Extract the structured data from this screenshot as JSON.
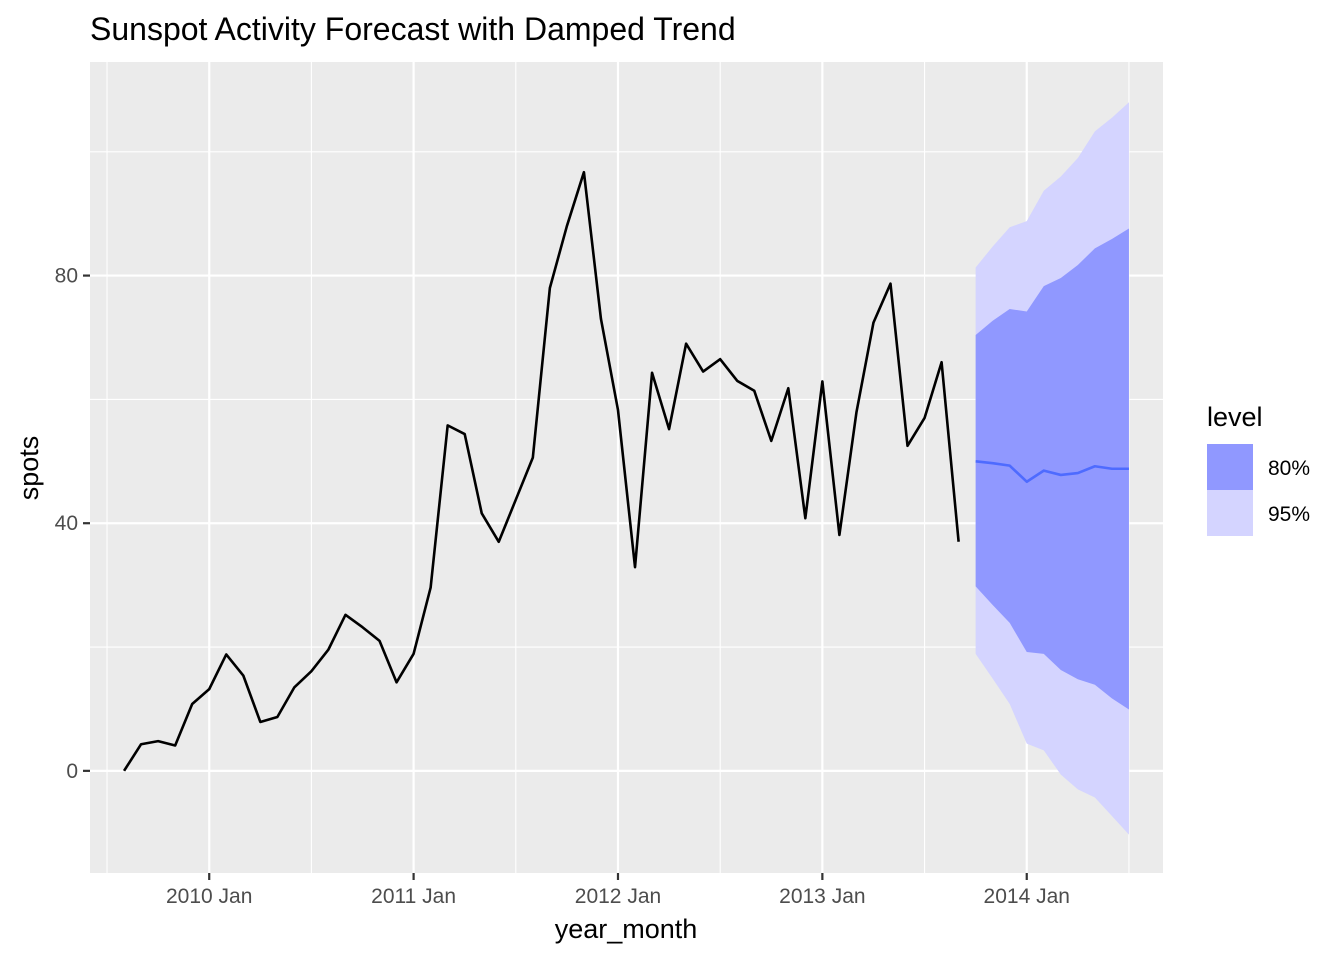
{
  "chart_data": {
    "type": "line",
    "title": "Sunspot Activity Forecast with Damped Trend",
    "xlabel": "year_month",
    "ylabel": "spots",
    "x_ticks": [
      "2010 Jan",
      "2011 Jan",
      "2012 Jan",
      "2013 Jan",
      "2014 Jan"
    ],
    "y_ticks": [
      "0",
      "40",
      "80"
    ],
    "ylim": [
      -16.5,
      114.5
    ],
    "xlim": [
      "2009-06",
      "2014-09"
    ],
    "grid": true,
    "legend_position": "right",
    "legend_title": "level",
    "colors": {
      "panel": "#EBEBEB",
      "grid": "#FFFFFF",
      "history": "#000000",
      "forecast_mean": "#4E6BFF",
      "band_80": "#9098FF",
      "band_95": "#D4D4FF"
    },
    "history": {
      "x": [
        "2009-08",
        "2009-09",
        "2009-10",
        "2009-11",
        "2009-12",
        "2010-01",
        "2010-02",
        "2010-03",
        "2010-04",
        "2010-05",
        "2010-06",
        "2010-07",
        "2010-08",
        "2010-09",
        "2010-10",
        "2010-11",
        "2010-12",
        "2011-01",
        "2011-02",
        "2011-03",
        "2011-04",
        "2011-05",
        "2011-06",
        "2011-07",
        "2011-08",
        "2011-09",
        "2011-10",
        "2011-11",
        "2011-12",
        "2012-01",
        "2012-02",
        "2012-03",
        "2012-04",
        "2012-05",
        "2012-06",
        "2012-07",
        "2012-08",
        "2012-09",
        "2012-10",
        "2012-11",
        "2012-12",
        "2013-01",
        "2013-02",
        "2013-03",
        "2013-04",
        "2013-05",
        "2013-06",
        "2013-07",
        "2013-08",
        "2013-09"
      ],
      "y": [
        0.0,
        4.3,
        4.8,
        4.1,
        10.8,
        13.2,
        18.8,
        15.4,
        7.9,
        8.7,
        13.5,
        16.1,
        19.6,
        25.2,
        23.2,
        21.0,
        14.3,
        18.9,
        29.6,
        55.8,
        54.4,
        41.6,
        37.0,
        43.8,
        50.6,
        78.0,
        88.0,
        96.7,
        73.0,
        58.3,
        32.9,
        64.3,
        55.2,
        69.0,
        64.5,
        66.5,
        63.0,
        61.4,
        53.3,
        61.8,
        40.8,
        62.9,
        38.1,
        57.9,
        72.4,
        78.7,
        52.5,
        57.0,
        66.0,
        37.0
      ]
    },
    "forecast": {
      "x": [
        "2013-10",
        "2013-11",
        "2013-12",
        "2014-01",
        "2014-02",
        "2014-03",
        "2014-04",
        "2014-05",
        "2014-06",
        "2014-07"
      ],
      "mean": [
        50.0,
        49.7,
        49.3,
        46.7,
        48.5,
        47.8,
        48.1,
        49.2,
        48.8,
        48.8
      ],
      "lower_80": [
        29.8,
        26.8,
        23.9,
        19.2,
        18.9,
        16.3,
        14.8,
        13.9,
        11.7,
        9.9
      ],
      "upper_80": [
        70.4,
        72.7,
        74.6,
        74.2,
        78.3,
        79.6,
        81.7,
        84.4,
        85.9,
        87.6
      ],
      "lower_95": [
        18.9,
        14.9,
        10.8,
        4.4,
        3.3,
        -0.6,
        -3.0,
        -4.3,
        -7.3,
        -10.3
      ],
      "upper_95": [
        81.3,
        84.7,
        87.8,
        88.8,
        93.7,
        96.0,
        99.0,
        103.3,
        105.5,
        108.0
      ]
    },
    "legend": [
      {
        "label": "80%",
        "color": "#9098FF"
      },
      {
        "label": "95%",
        "color": "#D4D4FF"
      }
    ]
  }
}
